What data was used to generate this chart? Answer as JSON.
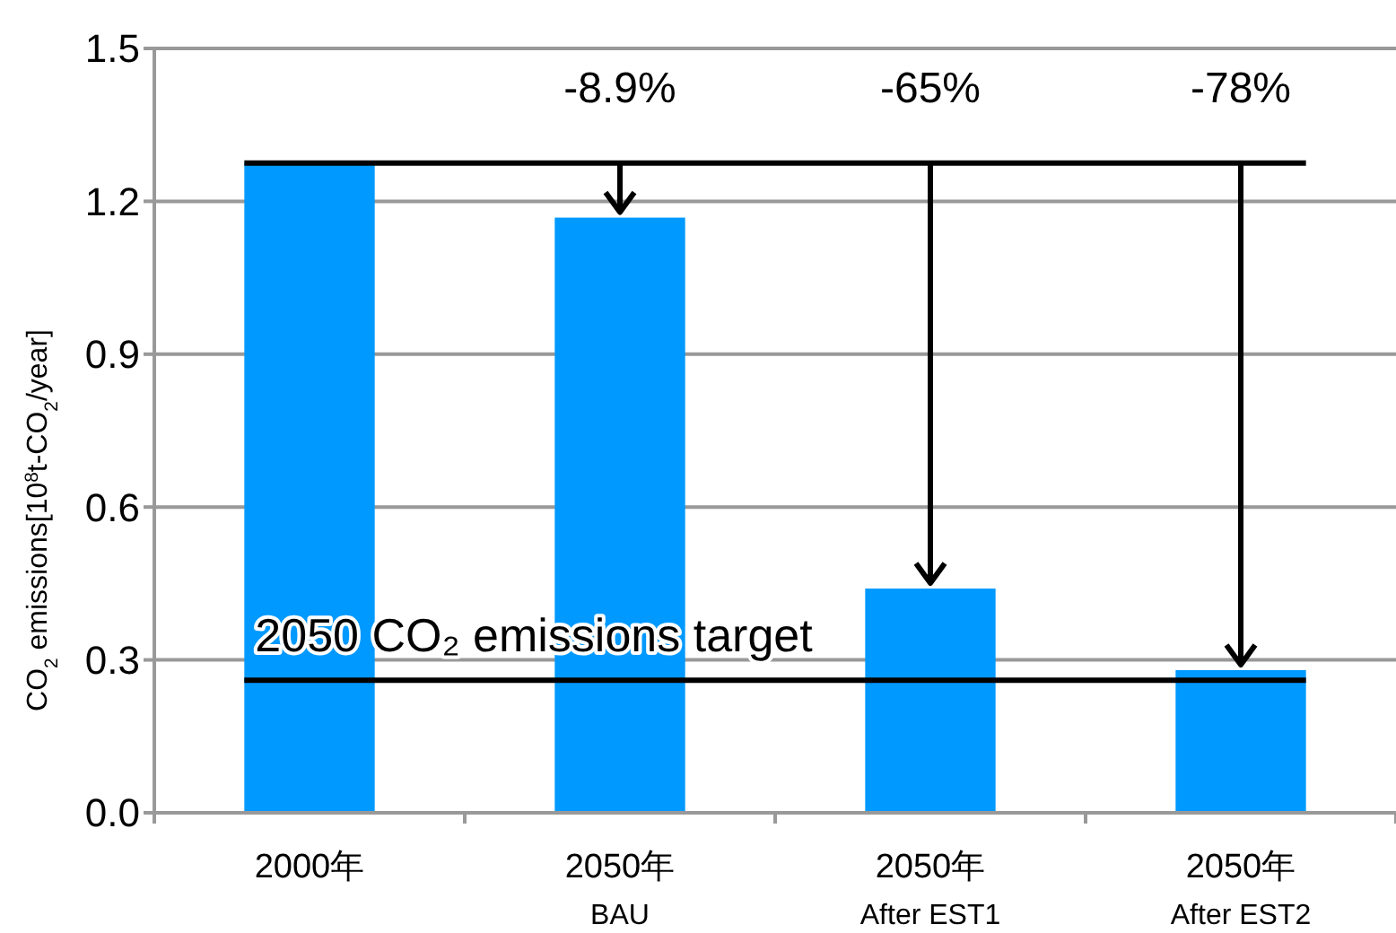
{
  "chart_data": {
    "type": "bar",
    "ylabel": "CO$_{2}$ emissions[10$^{8}$t-CO$_{2}$/year]",
    "categories": [
      "2000年",
      "2050年\nBAU",
      "2050年\nAfter EST1",
      "2050年\nAfter EST2"
    ],
    "values": [
      1.275,
      1.168,
      0.44,
      0.28
    ],
    "color": "#0099ff",
    "ylim": [
      0,
      1.5
    ],
    "yticks": [
      {
        "value": 0,
        "label": "0.0"
      },
      0.3,
      0.6,
      0.9,
      1.2,
      1.5
    ],
    "grid": "y",
    "ref_lines": [
      {
        "axis": "y",
        "value": 1.275,
        "color": "#000000"
      },
      {
        "axis": "y",
        "value": 0.26,
        "label": "2050 CO₂ emissions target",
        "color": "#000000"
      }
    ],
    "annotations": [
      {
        "text": "-8.9%",
        "x": "2050年\nBAU"
      },
      {
        "text": "-65%",
        "x": "2050年\nAfter EST1"
      },
      {
        "text": "-78%",
        "x": "2050年\nAfter EST2"
      }
    ]
  }
}
